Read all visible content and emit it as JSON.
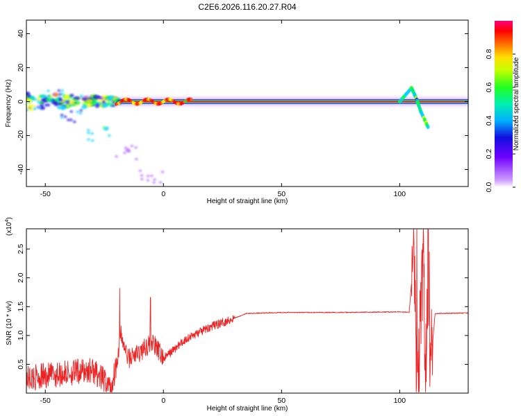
{
  "title": "C2E6.2026.116.20.27.R04",
  "chart_data": [
    {
      "type": "heatmap",
      "xlabel": "Height of straight line (km)",
      "ylabel": "Frequency (Hz)",
      "xlim": [
        -58,
        129
      ],
      "ylim": [
        -50,
        48
      ],
      "xticks": [
        -50,
        0,
        50,
        100
      ],
      "yticks": [
        -40,
        -20,
        0,
        20,
        40
      ],
      "colorbar": {
        "label": "Normalized spectral amplitude",
        "range": [
          0,
          1
        ],
        "ticks": [
          "0.0",
          "0.2",
          "0.4",
          "0.6",
          "0.8"
        ],
        "colors": [
          "#ffffff",
          "#b070ff",
          "#1a10e0",
          "#00d0ff",
          "#00ff40",
          "#ffff00",
          "#ff6000",
          "#ff0000",
          "#ff0080"
        ]
      },
      "ridges": [
        {
          "x": [
            -58,
            -40,
            -25,
            -20
          ],
          "y": [
            0,
            1,
            -1,
            0
          ],
          "amplitude": 0.4
        },
        {
          "x": [
            -20,
            0,
            50,
            100
          ],
          "y": [
            1,
            0,
            0,
            0
          ],
          "amplitude": 0.85
        },
        {
          "x": [
            100,
            105,
            107,
            109,
            112
          ],
          "y": [
            0,
            8,
            2,
            -6,
            -15
          ],
          "amplitude": 0.5
        },
        {
          "x": [
            112,
            129
          ],
          "y": [
            0,
            0
          ],
          "amplitude": 0.75
        }
      ],
      "scatter_blobs": [
        {
          "x": -45,
          "y": 3,
          "amplitude": 0.3
        },
        {
          "x": -38,
          "y": -8,
          "amplitude": 0.25
        },
        {
          "x": -27,
          "y": -19,
          "amplitude": 0.35
        },
        {
          "x": -15,
          "y": -30,
          "amplitude": 0.1
        },
        {
          "x": -5,
          "y": -44,
          "amplitude": 0.05
        }
      ]
    },
    {
      "type": "line",
      "xlabel": "Height of straight line (km)",
      "ylabel": "SNR (10 * v/v)",
      "ylabel_multiplier": "(x10",
      "ylabel_exponent": "4",
      "xlim": [
        -58,
        129
      ],
      "ylim": [
        0,
        2.85
      ],
      "xticks": [
        -50,
        0,
        50,
        100
      ],
      "yticks": [
        "0.5",
        "1.0",
        "1.5",
        "2.0",
        "2.5"
      ],
      "color": "#ee2222",
      "series": [
        {
          "x": [
            -58,
            -50,
            -40,
            -30,
            -22,
            -20,
            -18,
            -15,
            -10,
            -5,
            0,
            10,
            20,
            30,
            35,
            50,
            80,
            100,
            104,
            106,
            107,
            108,
            110,
            111,
            112,
            113,
            115,
            129
          ],
          "y": [
            0.25,
            0.3,
            0.35,
            0.4,
            0.1,
            0.5,
            1.0,
            0.6,
            0.7,
            0.9,
            0.6,
            0.95,
            1.15,
            1.3,
            1.38,
            1.4,
            1.4,
            1.41,
            1.4,
            2.4,
            0.4,
            0.35,
            2.3,
            0.35,
            2.3,
            0.45,
            1.38,
            1.39
          ]
        }
      ],
      "spikes": [
        {
          "x": -18.5,
          "y": 1.82
        },
        {
          "x": -5.5,
          "y": 1.66
        },
        {
          "x": 107.2,
          "y": 2.85
        },
        {
          "x": 112.5,
          "y": 2.45
        }
      ]
    }
  ]
}
